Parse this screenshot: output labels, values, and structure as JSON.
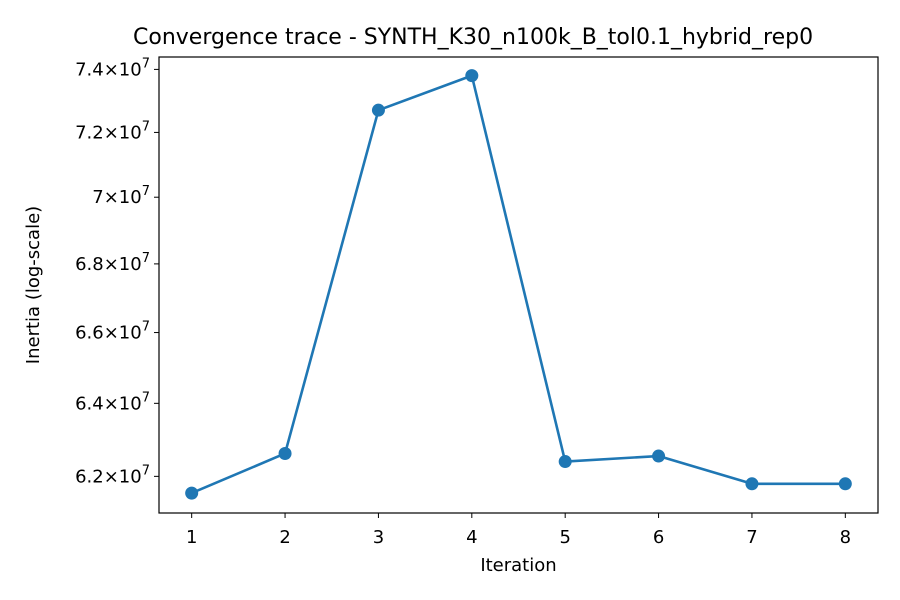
{
  "chart_data": {
    "type": "line",
    "title": "Convergence trace - SYNTH_K30_n100k_B_tol0.1_hybrid_rep0",
    "xlabel": "Iteration",
    "ylabel": "Inertia (log-scale)",
    "yscale": "log",
    "x": [
      1,
      2,
      3,
      4,
      5,
      6,
      7,
      8
    ],
    "y": [
      61550000,
      62620000,
      72700000,
      73800000,
      62400000,
      62550000,
      61800000,
      61800000
    ],
    "xticks": [
      {
        "value": 1,
        "label": "1"
      },
      {
        "value": 2,
        "label": "2"
      },
      {
        "value": 3,
        "label": "3"
      },
      {
        "value": 4,
        "label": "4"
      },
      {
        "value": 5,
        "label": "5"
      },
      {
        "value": 6,
        "label": "6"
      },
      {
        "value": 7,
        "label": "7"
      },
      {
        "value": 8,
        "label": "8"
      }
    ],
    "yticks": [
      {
        "value": 62000000,
        "mantissa": "6.2",
        "exponent": "7"
      },
      {
        "value": 64000000,
        "mantissa": "6.4",
        "exponent": "7"
      },
      {
        "value": 66000000,
        "mantissa": "6.6",
        "exponent": "7"
      },
      {
        "value": 68000000,
        "mantissa": "6.8",
        "exponent": "7"
      },
      {
        "value": 70000000,
        "mantissa": "7",
        "exponent": "7"
      },
      {
        "value": 72000000,
        "mantissa": "7.2",
        "exponent": "7"
      },
      {
        "value": 74000000,
        "mantissa": "7.4",
        "exponent": "7"
      }
    ],
    "xlim": [
      0.65,
      8.35
    ],
    "ylim": [
      61020000,
      74400000
    ],
    "grid": false,
    "line_color": "#1f77b4"
  }
}
